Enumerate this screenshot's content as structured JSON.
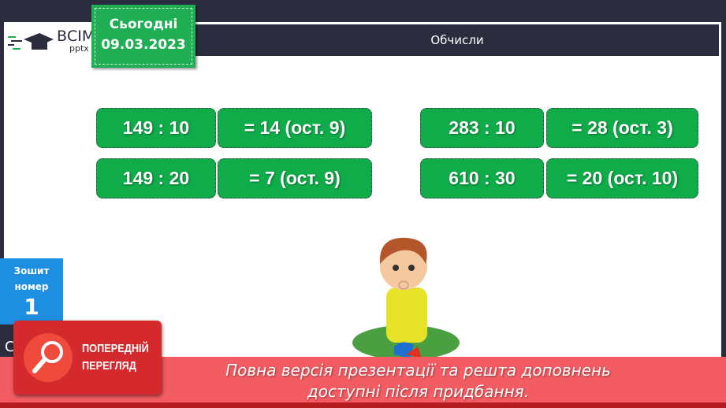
{
  "logo": {
    "title": "ВСІМ",
    "subtitle": "pptx"
  },
  "date": {
    "label": "Сьогодні",
    "value": "09.03.2023"
  },
  "header": {
    "title": "Обчисли"
  },
  "problems": [
    {
      "expr": "149 : 10",
      "answer": "= 14 (ост. 9)"
    },
    {
      "expr": "149 : 20",
      "answer": "= 7 (ост. 9)"
    },
    {
      "expr": "283 : 10",
      "answer": "= 28 (ост. 3)"
    },
    {
      "expr": "610 : 30",
      "answer": "= 20 (ост. 10)"
    }
  ],
  "notebook": {
    "label1": "Зошит",
    "label2": "номер",
    "number": "1"
  },
  "hidden_letter": "С",
  "preview": {
    "line1": "ПОПЕРЕДНІЙ",
    "line2": "ПЕРЕГЛЯД"
  },
  "banner": {
    "line1": "Повна версія презентації та решта доповнень",
    "line2": "доступні після придбання."
  },
  "colors": {
    "accent": "#10ac4a",
    "dark": "#2b2d3f",
    "banner": "#f25c62",
    "notebook": "#1e8fe0"
  }
}
